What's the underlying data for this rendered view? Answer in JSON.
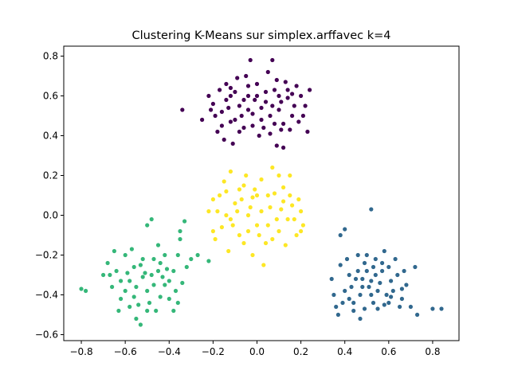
{
  "chart_data": {
    "type": "scatter",
    "title": "Clustering K-Means sur simplex.arffavec k=4",
    "xlabel": "",
    "ylabel": "",
    "xlim": [
      -0.88,
      0.92
    ],
    "ylim": [
      -0.63,
      0.85
    ],
    "xticks": [
      "-0.8",
      "-0.6",
      "-0.4",
      "-0.2",
      "0.0",
      "0.2",
      "0.4",
      "0.6",
      "0.8"
    ],
    "yticks": [
      "-0.6",
      "-0.4",
      "-0.2",
      "0.0",
      "0.2",
      "0.4",
      "0.6",
      "0.8"
    ],
    "grid": false,
    "legend": "none",
    "series": [
      {
        "color": "#440154",
        "points": [
          [
            -0.18,
            0.42
          ],
          [
            -0.16,
            0.52
          ],
          [
            -0.14,
            0.58
          ],
          [
            -0.12,
            0.47
          ],
          [
            -0.1,
            0.62
          ],
          [
            -0.08,
            0.55
          ],
          [
            -0.06,
            0.44
          ],
          [
            -0.04,
            0.6
          ],
          [
            -0.02,
            0.51
          ],
          [
            0.0,
            0.66
          ],
          [
            0.02,
            0.48
          ],
          [
            0.04,
            0.57
          ],
          [
            0.06,
            0.41
          ],
          [
            0.08,
            0.63
          ],
          [
            0.1,
            0.53
          ],
          [
            0.12,
            0.46
          ],
          [
            0.14,
            0.59
          ],
          [
            0.16,
            0.5
          ],
          [
            0.18,
            0.65
          ],
          [
            -0.2,
            0.56
          ],
          [
            -0.22,
            0.6
          ],
          [
            -0.15,
            0.38
          ],
          [
            -0.05,
            0.7
          ],
          [
            0.05,
            0.72
          ],
          [
            0.15,
            0.43
          ],
          [
            -0.11,
            0.36
          ],
          [
            0.09,
            0.35
          ],
          [
            -0.03,
            0.78
          ],
          [
            0.07,
            0.78
          ],
          [
            -0.09,
            0.69
          ],
          [
            0.13,
            0.67
          ],
          [
            -0.17,
            0.63
          ],
          [
            0.2,
            0.6
          ],
          [
            0.22,
            0.55
          ],
          [
            -0.25,
            0.48
          ],
          [
            -0.34,
            0.53
          ],
          [
            0.24,
            0.63
          ],
          [
            0.23,
            0.42
          ],
          [
            0.12,
            0.34
          ],
          [
            -0.07,
            0.5
          ],
          [
            0.03,
            0.44
          ],
          [
            -0.13,
            0.54
          ],
          [
            0.11,
            0.57
          ],
          [
            -0.01,
            0.58
          ],
          [
            0.06,
            0.5
          ],
          [
            -0.19,
            0.5
          ],
          [
            0.17,
            0.55
          ],
          [
            -0.04,
            0.65
          ],
          [
            0.09,
            0.68
          ],
          [
            -0.14,
            0.66
          ],
          [
            0.19,
            0.47
          ],
          [
            0.01,
            0.4
          ],
          [
            -0.08,
            0.42
          ],
          [
            0.14,
            0.63
          ],
          [
            -0.12,
            0.6
          ],
          [
            0.04,
            0.62
          ],
          [
            -0.02,
            0.45
          ],
          [
            0.08,
            0.46
          ],
          [
            -0.16,
            0.45
          ],
          [
            0.1,
            0.6
          ],
          [
            -0.06,
            0.58
          ],
          [
            0.02,
            0.54
          ],
          [
            0.16,
            0.61
          ],
          [
            -0.1,
            0.48
          ],
          [
            0.21,
            0.5
          ],
          [
            0.11,
            0.43
          ],
          [
            -0.21,
            0.53
          ],
          [
            -0.04,
            0.53
          ],
          [
            0.07,
            0.55
          ],
          [
            -0.12,
            0.64
          ],
          [
            0.0,
            0.6
          ]
        ]
      },
      {
        "color": "#fde725",
        "points": [
          [
            -0.2,
            0.08
          ],
          [
            -0.18,
            0.02
          ],
          [
            -0.16,
            -0.06
          ],
          [
            -0.14,
            0.12
          ],
          [
            -0.12,
            -0.02
          ],
          [
            -0.1,
            0.06
          ],
          [
            -0.08,
            -0.1
          ],
          [
            -0.06,
            0.15
          ],
          [
            -0.04,
            0.0
          ],
          [
            -0.02,
            0.09
          ],
          [
            0.0,
            -0.05
          ],
          [
            0.02,
            0.18
          ],
          [
            0.04,
            -0.14
          ],
          [
            0.06,
            0.04
          ],
          [
            0.08,
            0.11
          ],
          [
            0.1,
            -0.08
          ],
          [
            0.12,
            0.14
          ],
          [
            0.14,
            -0.02
          ],
          [
            0.16,
            0.05
          ],
          [
            0.18,
            -0.1
          ],
          [
            0.2,
            0.02
          ],
          [
            -0.19,
            -0.12
          ],
          [
            0.19,
            0.08
          ],
          [
            -0.13,
            -0.18
          ],
          [
            0.13,
            -0.15
          ],
          [
            -0.02,
            -0.2
          ],
          [
            0.03,
            -0.25
          ],
          [
            0.07,
            0.24
          ],
          [
            -0.05,
            0.2
          ],
          [
            0.15,
            0.2
          ],
          [
            -0.15,
            0.17
          ],
          [
            0.21,
            -0.05
          ],
          [
            -0.22,
            0.02
          ],
          [
            -0.09,
            0.02
          ],
          [
            0.05,
            0.1
          ],
          [
            -0.01,
            0.13
          ],
          [
            0.09,
            -0.02
          ],
          [
            -0.11,
            -0.05
          ],
          [
            0.11,
            0.03
          ],
          [
            -0.07,
            0.08
          ],
          [
            0.01,
            -0.1
          ],
          [
            -0.03,
            0.04
          ],
          [
            0.17,
            -0.02
          ],
          [
            -0.17,
            0.1
          ],
          [
            0.05,
            -0.05
          ],
          [
            -0.06,
            -0.14
          ],
          [
            0.1,
            0.2
          ],
          [
            -0.12,
            0.22
          ],
          [
            0.0,
            0.1
          ],
          [
            0.12,
            0.07
          ],
          [
            -0.14,
            0.0
          ],
          [
            0.07,
            -0.12
          ],
          [
            -0.04,
            -0.08
          ],
          [
            0.15,
            0.1
          ],
          [
            -0.2,
            -0.08
          ],
          [
            0.2,
            -0.08
          ],
          [
            0.02,
            0.02
          ],
          [
            -0.08,
            0.13
          ]
        ]
      },
      {
        "color": "#35b779",
        "points": [
          [
            -0.7,
            -0.3
          ],
          [
            -0.68,
            -0.24
          ],
          [
            -0.66,
            -0.36
          ],
          [
            -0.64,
            -0.28
          ],
          [
            -0.62,
            -0.42
          ],
          [
            -0.6,
            -0.2
          ],
          [
            -0.58,
            -0.33
          ],
          [
            -0.56,
            -0.26
          ],
          [
            -0.54,
            -0.45
          ],
          [
            -0.52,
            -0.22
          ],
          [
            -0.5,
            -0.38
          ],
          [
            -0.48,
            -0.3
          ],
          [
            -0.46,
            -0.48
          ],
          [
            -0.44,
            -0.24
          ],
          [
            -0.42,
            -0.35
          ],
          [
            -0.4,
            -0.42
          ],
          [
            -0.38,
            -0.28
          ],
          [
            -0.36,
            -0.2
          ],
          [
            -0.34,
            -0.34
          ],
          [
            -0.32,
            -0.26
          ],
          [
            -0.3,
            -0.22
          ],
          [
            -0.65,
            -0.18
          ],
          [
            -0.55,
            -0.52
          ],
          [
            -0.45,
            -0.15
          ],
          [
            -0.35,
            -0.12
          ],
          [
            -0.33,
            -0.03
          ],
          [
            -0.53,
            -0.55
          ],
          [
            -0.8,
            -0.37
          ],
          [
            -0.78,
            -0.38
          ],
          [
            -0.63,
            -0.48
          ],
          [
            -0.5,
            -0.05
          ],
          [
            -0.27,
            -0.2
          ],
          [
            -0.22,
            -0.23
          ],
          [
            -0.35,
            -0.08
          ],
          [
            -0.48,
            -0.02
          ],
          [
            -0.38,
            -0.48
          ],
          [
            -0.6,
            -0.38
          ],
          [
            -0.57,
            -0.17
          ],
          [
            -0.47,
            -0.35
          ],
          [
            -0.43,
            -0.31
          ],
          [
            -0.51,
            -0.29
          ],
          [
            -0.59,
            -0.29
          ],
          [
            -0.41,
            -0.27
          ],
          [
            -0.55,
            -0.36
          ],
          [
            -0.49,
            -0.44
          ],
          [
            -0.44,
            -0.41
          ],
          [
            -0.37,
            -0.38
          ],
          [
            -0.52,
            -0.31
          ],
          [
            -0.47,
            -0.22
          ],
          [
            -0.56,
            -0.41
          ],
          [
            -0.67,
            -0.3
          ],
          [
            -0.45,
            -0.28
          ],
          [
            -0.53,
            -0.25
          ],
          [
            -0.62,
            -0.33
          ],
          [
            -0.4,
            -0.33
          ],
          [
            -0.58,
            -0.46
          ],
          [
            -0.42,
            -0.2
          ],
          [
            -0.5,
            -0.48
          ],
          [
            -0.36,
            -0.44
          ]
        ]
      },
      {
        "color": "#31688e",
        "points": [
          [
            0.34,
            -0.32
          ],
          [
            0.36,
            -0.46
          ],
          [
            0.38,
            -0.25
          ],
          [
            0.4,
            -0.38
          ],
          [
            0.42,
            -0.3
          ],
          [
            0.44,
            -0.44
          ],
          [
            0.46,
            -0.2
          ],
          [
            0.48,
            -0.36
          ],
          [
            0.5,
            -0.28
          ],
          [
            0.52,
            -0.4
          ],
          [
            0.54,
            -0.22
          ],
          [
            0.56,
            -0.34
          ],
          [
            0.58,
            -0.45
          ],
          [
            0.6,
            -0.26
          ],
          [
            0.62,
            -0.38
          ],
          [
            0.64,
            -0.3
          ],
          [
            0.66,
            -0.42
          ],
          [
            0.68,
            -0.35
          ],
          [
            0.7,
            -0.46
          ],
          [
            0.72,
            -0.26
          ],
          [
            0.38,
            -0.1
          ],
          [
            0.4,
            -0.07
          ],
          [
            0.52,
            0.03
          ],
          [
            0.47,
            -0.52
          ],
          [
            0.8,
            -0.47
          ],
          [
            0.84,
            -0.47
          ],
          [
            0.73,
            -0.5
          ],
          [
            0.37,
            -0.5
          ],
          [
            0.44,
            -0.48
          ],
          [
            0.49,
            -0.47
          ],
          [
            0.55,
            -0.47
          ],
          [
            0.6,
            -0.44
          ],
          [
            0.66,
            -0.37
          ],
          [
            0.58,
            -0.18
          ],
          [
            0.46,
            -0.28
          ],
          [
            0.52,
            -0.33
          ],
          [
            0.57,
            -0.28
          ],
          [
            0.43,
            -0.36
          ],
          [
            0.49,
            -0.24
          ],
          [
            0.63,
            -0.22
          ],
          [
            0.41,
            -0.22
          ],
          [
            0.35,
            -0.4
          ],
          [
            0.53,
            -0.44
          ],
          [
            0.61,
            -0.33
          ],
          [
            0.47,
            -0.4
          ],
          [
            0.55,
            -0.38
          ],
          [
            0.45,
            -0.32
          ],
          [
            0.51,
            -0.36
          ],
          [
            0.59,
            -0.4
          ],
          [
            0.67,
            -0.28
          ],
          [
            0.39,
            -0.44
          ],
          [
            0.5,
            -0.2
          ],
          [
            0.54,
            -0.3
          ],
          [
            0.42,
            -0.42
          ],
          [
            0.65,
            -0.46
          ],
          [
            0.57,
            -0.24
          ],
          [
            0.48,
            -0.32
          ],
          [
            0.61,
            -0.41
          ],
          [
            0.53,
            -0.26
          ]
        ]
      }
    ]
  }
}
